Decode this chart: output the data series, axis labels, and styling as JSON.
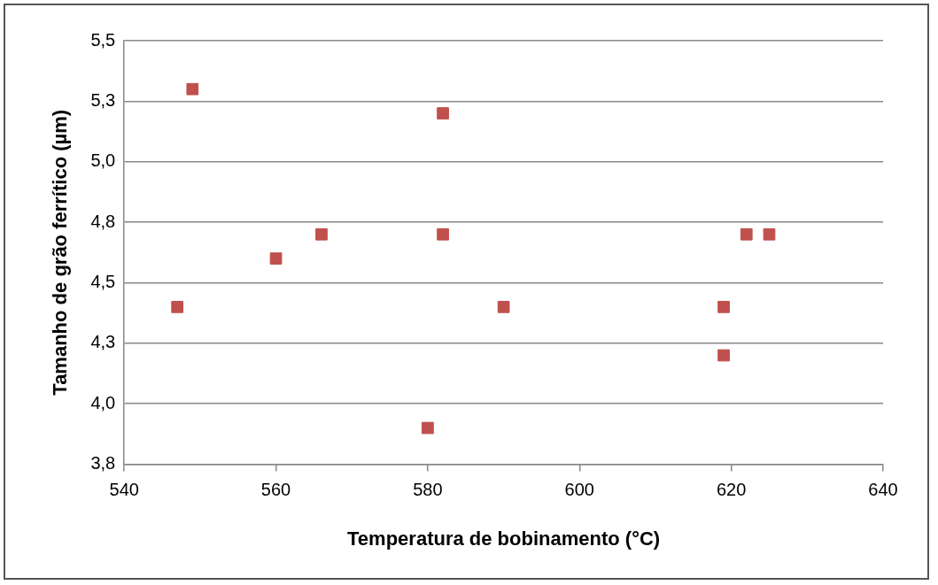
{
  "chart_data": {
    "type": "scatter",
    "xlabel": "Temperatura de bobinamento (°C)",
    "ylabel": "Tamanho de grão ferrítico (µm)",
    "x": [
      547,
      549,
      560,
      566,
      580,
      582,
      582,
      590,
      619,
      619,
      622,
      625
    ],
    "series": [
      {
        "color": "#c0504d",
        "values": [
          4.4,
          5.3,
          4.6,
          4.7,
          3.9,
          5.2,
          4.7,
          4.4,
          4.4,
          4.2,
          4.7,
          4.7
        ]
      }
    ],
    "xlim": [
      540,
      640
    ],
    "xticks": [
      540,
      560,
      580,
      600,
      620,
      640
    ],
    "ylim": [
      3.75,
      5.5
    ],
    "yticks": [
      {
        "value": 3.75,
        "label": "3,8"
      },
      {
        "value": 4,
        "label": "4,0"
      },
      {
        "value": 4.25,
        "label": "4,3"
      },
      {
        "value": 4.5,
        "label": "4,5"
      },
      {
        "value": 4.75,
        "label": "4,8"
      },
      {
        "value": 5,
        "label": "5,0"
      },
      {
        "value": 5.25,
        "label": "5,3"
      },
      {
        "value": 5.5,
        "label": "5,5"
      }
    ],
    "grid": "y",
    "legend": false,
    "marker": "square"
  }
}
